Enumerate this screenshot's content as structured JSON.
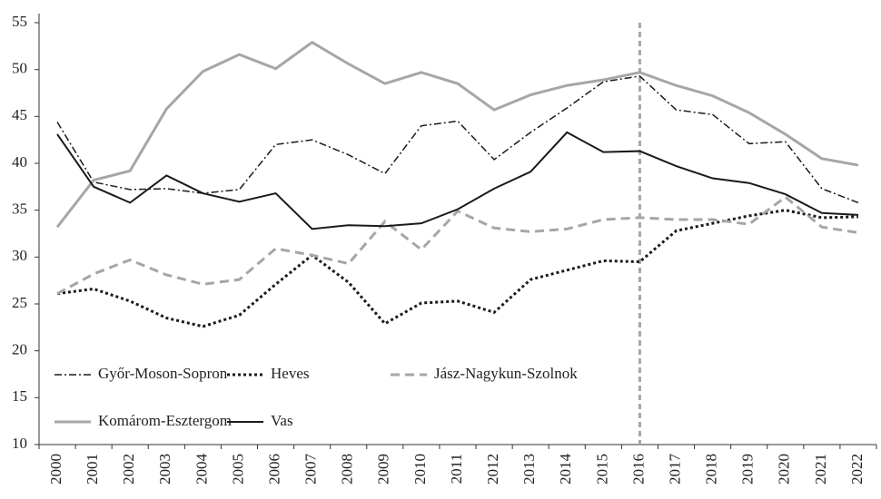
{
  "chart_data": {
    "type": "line",
    "categories": [
      "2000",
      "2001",
      "2002",
      "2003",
      "2004",
      "2005",
      "2006",
      "2007",
      "2008",
      "2009",
      "2010",
      "2011",
      "2012",
      "2013",
      "2014",
      "2015",
      "2016",
      "2017",
      "2018",
      "2019",
      "2020",
      "2021",
      "2022"
    ],
    "ylim": [
      10,
      55
    ],
    "yticks": [
      10,
      15,
      20,
      25,
      30,
      35,
      40,
      45,
      50,
      55
    ],
    "vline": "2016",
    "series": [
      {
        "name": "Győr-Moson-Sopron",
        "color": "#1a1a1a",
        "dash": "dashdot",
        "width": 1.5,
        "values": [
          44.4,
          38.0,
          37.2,
          37.3,
          36.8,
          37.2,
          42.0,
          42.5,
          40.9,
          38.9,
          44.0,
          44.5,
          40.4,
          43.3,
          45.9,
          48.7,
          49.3,
          45.7,
          45.2,
          42.1,
          42.3,
          37.3,
          35.8
        ]
      },
      {
        "name": "Heves",
        "color": "#1a1a1a",
        "dash": "dotted",
        "width": 3,
        "values": [
          26.1,
          26.6,
          25.3,
          23.5,
          22.6,
          23.8,
          27.1,
          30.2,
          27.3,
          22.9,
          25.1,
          25.3,
          24.1,
          27.6,
          28.6,
          29.6,
          29.5,
          32.8,
          33.6,
          34.4,
          35.0,
          34.2,
          34.3
        ]
      },
      {
        "name": "Jász-Nagykun-Szolnok",
        "color": "#a6a6a6",
        "dash": "dashed",
        "width": 3,
        "values": [
          26.1,
          28.2,
          29.7,
          28.1,
          27.1,
          27.6,
          30.9,
          30.2,
          29.3,
          33.8,
          30.8,
          34.9,
          33.1,
          32.7,
          33.0,
          34.0,
          34.2,
          34.0,
          34.0,
          33.5,
          36.4,
          33.2,
          32.6
        ]
      },
      {
        "name": "Komárom-Esztergom",
        "color": "#a6a6a6",
        "dash": "solid",
        "width": 3,
        "values": [
          33.2,
          38.2,
          39.2,
          45.8,
          49.8,
          51.6,
          50.1,
          52.9,
          50.6,
          48.5,
          49.7,
          48.5,
          45.7,
          47.3,
          48.3,
          48.9,
          49.7,
          48.3,
          47.2,
          45.4,
          43.1,
          40.5,
          39.8
        ]
      },
      {
        "name": "Vas",
        "color": "#1a1a1a",
        "dash": "solid",
        "width": 2,
        "values": [
          43.1,
          37.5,
          35.8,
          38.7,
          36.8,
          35.9,
          36.8,
          33.0,
          33.4,
          33.3,
          33.6,
          35.1,
          37.3,
          39.1,
          43.3,
          41.2,
          41.3,
          39.7,
          38.4,
          37.9,
          36.7,
          34.7,
          34.5
        ]
      }
    ]
  }
}
